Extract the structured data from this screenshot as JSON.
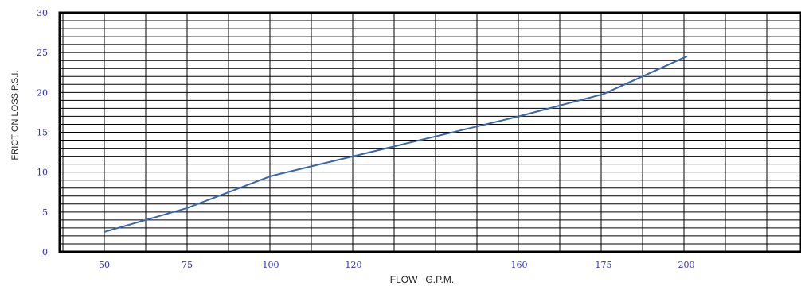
{
  "chart_data": {
    "type": "line",
    "xlabel": "FLOW   G.P.M.",
    "ylabel": "FRICTION LOSS P.S.I.",
    "grid": true,
    "ylim": [
      0,
      30
    ],
    "y_ticks": [
      "0",
      "5",
      "10",
      "15",
      "20",
      "25",
      "30"
    ],
    "x_tick_labels": [
      "50",
      "75",
      "100",
      "120",
      "160",
      "175",
      "200"
    ],
    "series": [
      {
        "x": [
          "50",
          "75",
          "100",
          "120",
          "160",
          "175",
          "200"
        ],
        "values": [
          2.5,
          5.5,
          9.5,
          12.0,
          17.0,
          19.8,
          24.5
        ]
      }
    ],
    "colors": {
      "line": "#3a66b0",
      "grid": "#000000",
      "tick_text": "#2f2fd0",
      "axis_title": "#222222"
    }
  }
}
